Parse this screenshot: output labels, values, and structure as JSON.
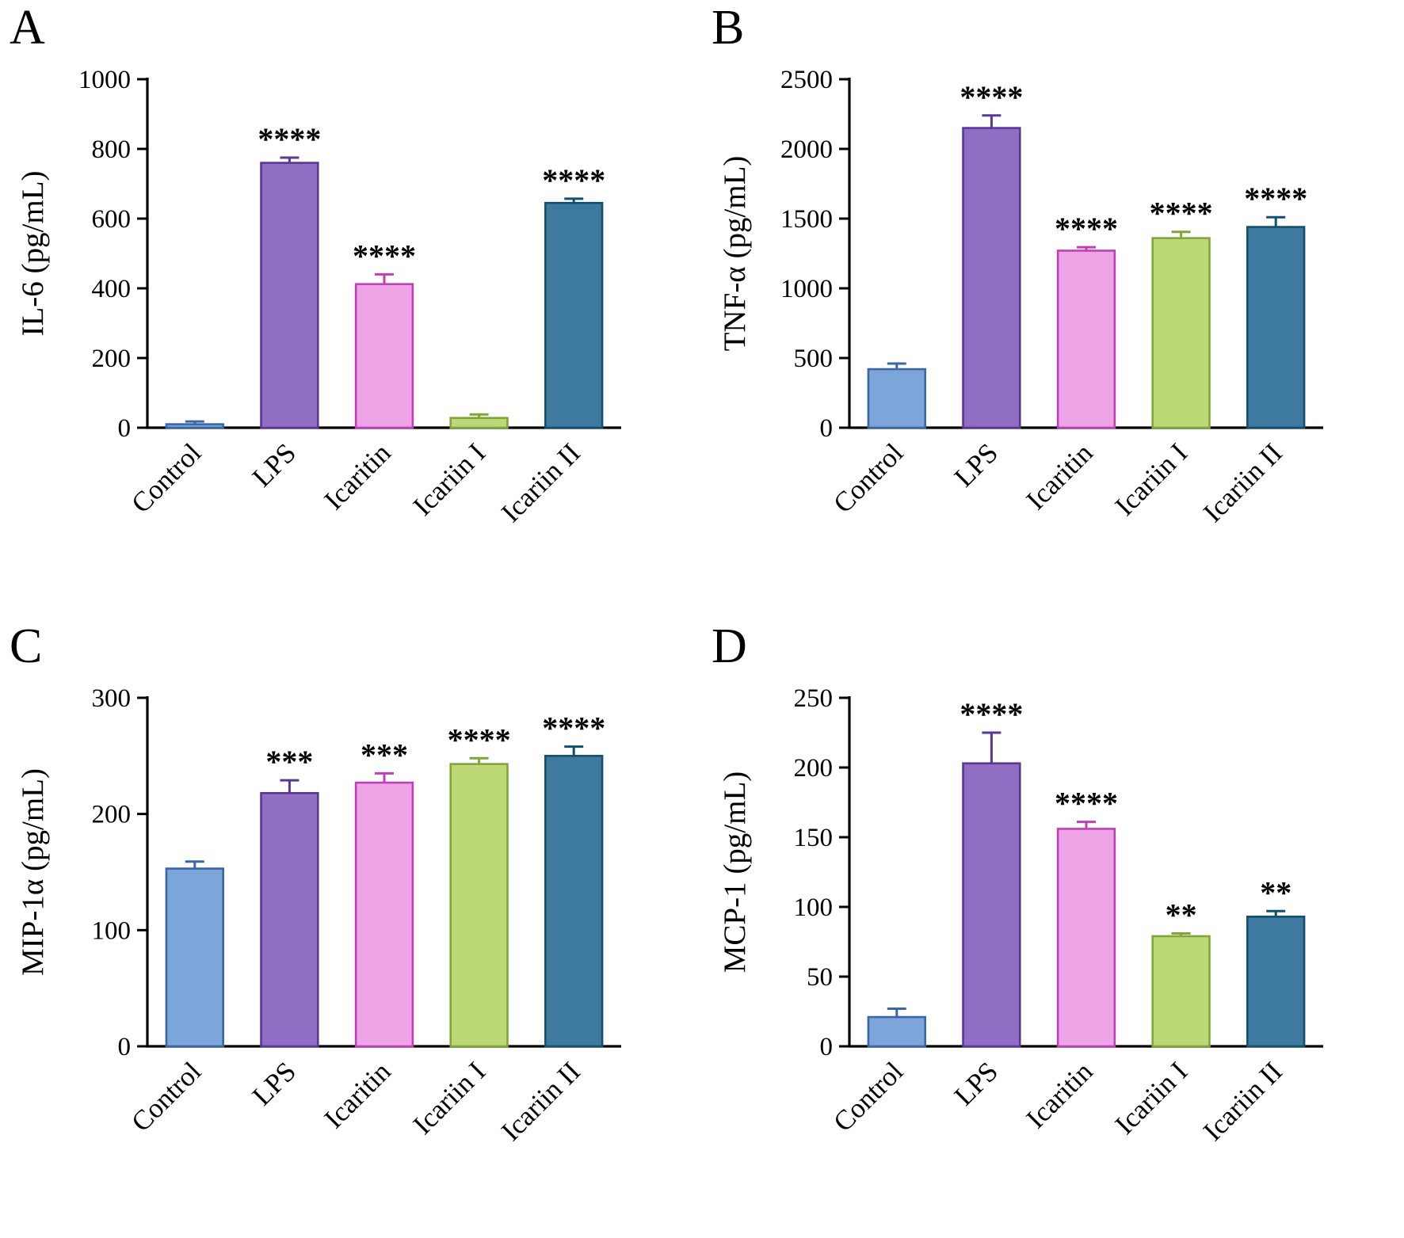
{
  "figure": {
    "background": "#ffffff",
    "series_colors": [
      {
        "name": "Control",
        "fill": "#7ca6d9",
        "stroke": "#3a66a8"
      },
      {
        "name": "LPS",
        "fill": "#8f6ec3",
        "stroke": "#5a3795"
      },
      {
        "name": "Icaritin",
        "fill": "#eda4e6",
        "stroke": "#c03fb8"
      },
      {
        "name": "Icariin I",
        "fill": "#bdd977",
        "stroke": "#7fa637"
      },
      {
        "name": "Icariin II",
        "fill": "#3e7aa0",
        "stroke": "#134f6e"
      }
    ]
  },
  "chart_data": [
    {
      "panel": "A",
      "type": "bar",
      "title": "",
      "xlabel": "",
      "ylabel": "IL-6  (pg/mL)",
      "ylim": [
        0,
        1000
      ],
      "yticks": [
        0,
        200,
        400,
        600,
        800,
        1000
      ],
      "grid": false,
      "legend": "none",
      "categories": [
        "Control",
        "LPS",
        "Icaritin",
        "Icariin I",
        "Icariin II"
      ],
      "values": [
        10,
        760,
        412,
        28,
        645
      ],
      "errors": [
        8,
        15,
        28,
        10,
        12
      ],
      "significance": [
        "",
        "****",
        "****",
        "",
        "****"
      ]
    },
    {
      "panel": "B",
      "type": "bar",
      "title": "",
      "xlabel": "",
      "ylabel": "TNF-α (pg/mL)",
      "ylim": [
        0,
        2500
      ],
      "yticks": [
        0,
        500,
        1000,
        1500,
        2000,
        2500
      ],
      "grid": false,
      "legend": "none",
      "categories": [
        "Control",
        "LPS",
        "Icaritin",
        "Icariin I",
        "Icariin II"
      ],
      "values": [
        420,
        2150,
        1270,
        1360,
        1440
      ],
      "errors": [
        40,
        90,
        25,
        45,
        70
      ],
      "significance": [
        "",
        "****",
        "****",
        "****",
        "****"
      ]
    },
    {
      "panel": "C",
      "type": "bar",
      "title": "",
      "xlabel": "",
      "ylabel": "MIP-1α (pg/mL)",
      "ylim": [
        0,
        300
      ],
      "yticks": [
        0,
        100,
        200,
        300
      ],
      "grid": false,
      "legend": "none",
      "categories": [
        "Control",
        "LPS",
        "Icaritin",
        "Icariin I",
        "Icariin II"
      ],
      "values": [
        153,
        218,
        227,
        243,
        250
      ],
      "errors": [
        6,
        11,
        8,
        5,
        8
      ],
      "significance": [
        "",
        "***",
        "***",
        "****",
        "****"
      ]
    },
    {
      "panel": "D",
      "type": "bar",
      "title": "",
      "xlabel": "",
      "ylabel": "MCP-1 (pg/mL)",
      "ylim": [
        0,
        250
      ],
      "yticks": [
        0,
        50,
        100,
        150,
        200,
        250
      ],
      "grid": false,
      "legend": "none",
      "categories": [
        "Control",
        "LPS",
        "Icaritin",
        "Icariin I",
        "Icariin II"
      ],
      "values": [
        21,
        203,
        156,
        79,
        93
      ],
      "errors": [
        6,
        22,
        5,
        2,
        4
      ],
      "significance": [
        "",
        "****",
        "****",
        "**",
        "**"
      ]
    }
  ]
}
